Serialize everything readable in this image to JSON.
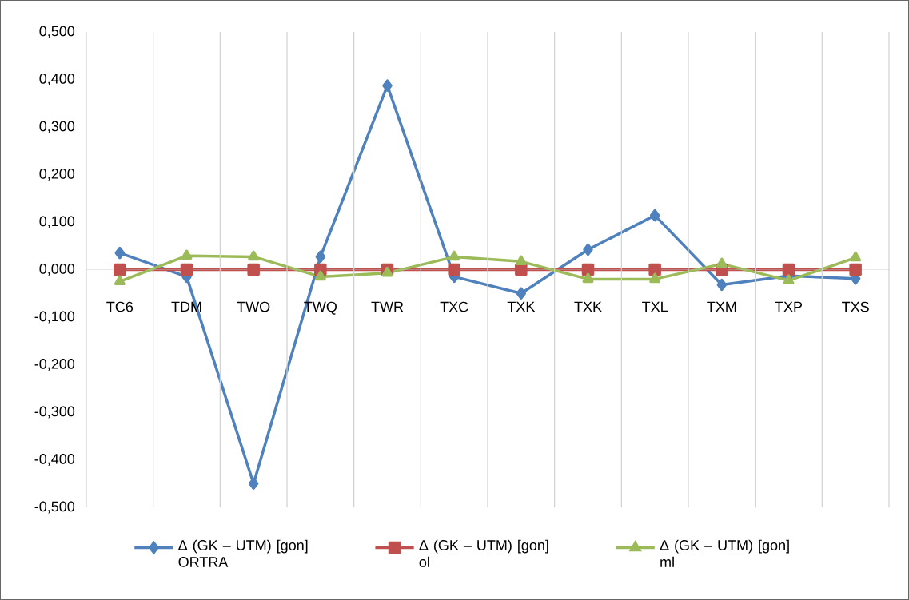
{
  "chart_data": {
    "type": "line",
    "categories": [
      "TC6",
      "TDM",
      "TWO",
      "TWQ",
      "TWR",
      "TXC",
      "TXK",
      "TXK",
      "TXL",
      "TXM",
      "TXP",
      "TXS"
    ],
    "series": [
      {
        "name": "Δ (GK – UTM) [gon] ORTRA",
        "color": "#4f81bd",
        "marker": "diamond",
        "values": [
          0.035,
          -0.015,
          -0.45,
          0.027,
          0.387,
          -0.015,
          -0.05,
          0.042,
          0.114,
          -0.032,
          -0.013,
          -0.019
        ]
      },
      {
        "name": "Δ (GK – UTM) [gon] ol",
        "color": "#c0504d",
        "marker": "square",
        "values": [
          0,
          0,
          0,
          0,
          0,
          0,
          0,
          0,
          0,
          0,
          0,
          0
        ]
      },
      {
        "name": "Δ (GK – UTM) [gon] ml",
        "color": "#9bbb59",
        "marker": "triangle",
        "values": [
          -0.025,
          0.029,
          0.027,
          -0.015,
          -0.007,
          0.027,
          0.017,
          -0.02,
          -0.02,
          0.012,
          -0.023,
          0.025
        ]
      }
    ],
    "ylim": [
      -0.5,
      0.5
    ],
    "yticks": [
      {
        "value": -0.5,
        "label": "-0,500"
      },
      {
        "value": -0.4,
        "label": "-0,400"
      },
      {
        "value": -0.3,
        "label": "-0,300"
      },
      {
        "value": -0.2,
        "label": "-0,200"
      },
      {
        "value": -0.1,
        "label": "-0,100"
      },
      {
        "value": 0,
        "label": "0,000"
      },
      {
        "value": 0.1,
        "label": "0,100"
      },
      {
        "value": 0.2,
        "label": "0,200"
      },
      {
        "value": 0.3,
        "label": "0,300"
      },
      {
        "value": 0.4,
        "label": "0,400"
      },
      {
        "value": 0.5,
        "label": "0,500"
      }
    ],
    "grid": "x",
    "legend": "bottom",
    "line_style": "solid"
  }
}
